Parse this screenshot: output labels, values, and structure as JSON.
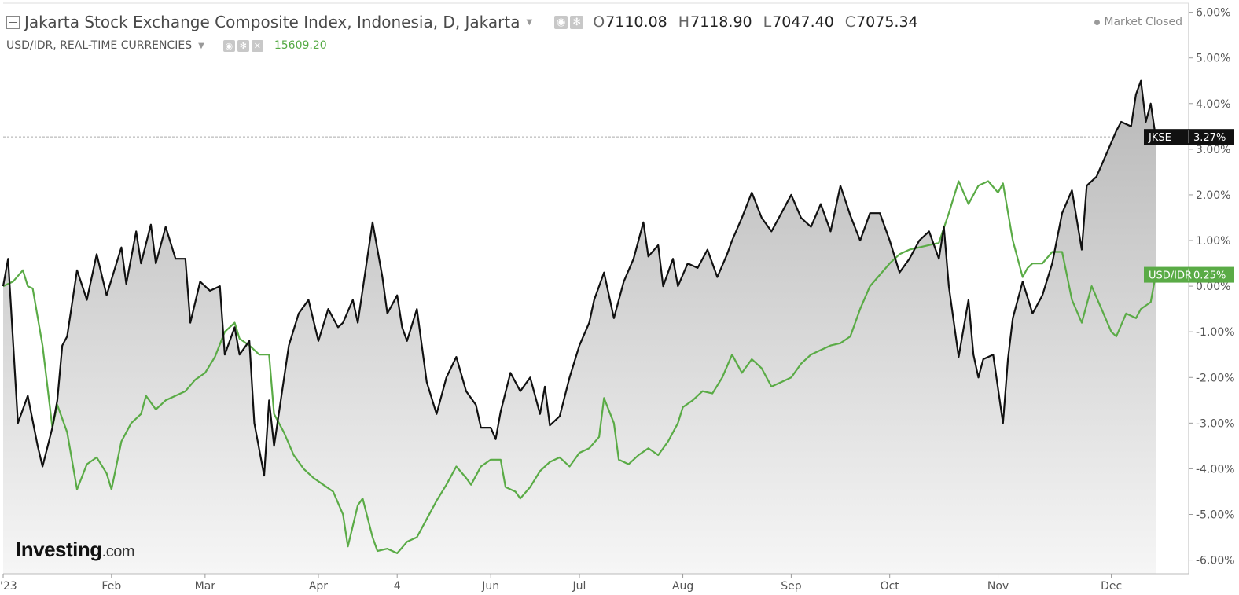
{
  "header": {
    "title": "Jakarta Stock Exchange Composite Index, Indonesia, D, Jakarta",
    "ohlc": [
      {
        "key": "O",
        "value": "7110.08"
      },
      {
        "key": "H",
        "value": "7118.90"
      },
      {
        "key": "L",
        "value": "7047.40"
      },
      {
        "key": "C",
        "value": "7075.34"
      }
    ],
    "status": "Market Closed"
  },
  "subheader": {
    "title": "USD/IDR, REAL-TIME CURRENCIES",
    "last_value": "15609.20"
  },
  "logo": {
    "main": "Investing",
    "suffix": ".com"
  },
  "colors": {
    "jkse": "#111111",
    "usdidr": "#5aab46",
    "area_top": "#b8b8b8",
    "area_bottom": "#f6f6f6",
    "grid": "#eeeeee"
  },
  "chart_data": {
    "type": "line",
    "ylim": [
      -6.3,
      6.2
    ],
    "y_scale": "percent change",
    "yticks": [
      "6.00%",
      "5.00%",
      "4.00%",
      "3.00%",
      "2.00%",
      "1.00%",
      "0.00%",
      "-1.00%",
      "-2.00%",
      "-3.00%",
      "-4.00%",
      "-5.00%",
      "-6.00%"
    ],
    "ytick_values": [
      6,
      5,
      4,
      3,
      2,
      1,
      0,
      -1,
      -2,
      -3,
      -4,
      -5,
      -6
    ],
    "xticks": [
      "2023",
      "Feb",
      "Mar",
      "Apr",
      "4",
      "Jun",
      "Jul",
      "Aug",
      "Sep",
      "Oct",
      "Nov",
      "Dec"
    ],
    "xtick_values": [
      0,
      22,
      41,
      64,
      80,
      99,
      117,
      138,
      160,
      180,
      202,
      225
    ],
    "xlim": [
      0,
      236
    ],
    "series": [
      {
        "name": "JKSE",
        "label": "3.27%",
        "last": 3.27,
        "fill": true,
        "points": [
          [
            0,
            0
          ],
          [
            1,
            0.6
          ],
          [
            3,
            -3.0
          ],
          [
            5,
            -2.4
          ],
          [
            7,
            -3.5
          ],
          [
            8,
            -3.95
          ],
          [
            10,
            -3.1
          ],
          [
            11,
            -2.5
          ],
          [
            12,
            -1.3
          ],
          [
            13,
            -1.1
          ],
          [
            15,
            0.35
          ],
          [
            17,
            -0.3
          ],
          [
            19,
            0.7
          ],
          [
            21,
            -0.2
          ],
          [
            24,
            0.85
          ],
          [
            25,
            0.05
          ],
          [
            27,
            1.2
          ],
          [
            28,
            0.5
          ],
          [
            30,
            1.35
          ],
          [
            31,
            0.5
          ],
          [
            33,
            1.3
          ],
          [
            35,
            0.6
          ],
          [
            37,
            0.6
          ],
          [
            38,
            -0.8
          ],
          [
            40,
            0.1
          ],
          [
            42,
            -0.1
          ],
          [
            44,
            0.0
          ],
          [
            45,
            -1.5
          ],
          [
            47,
            -0.9
          ],
          [
            48,
            -1.5
          ],
          [
            50,
            -1.2
          ],
          [
            51,
            -3.0
          ],
          [
            53,
            -4.15
          ],
          [
            54,
            -2.5
          ],
          [
            55,
            -3.5
          ],
          [
            58,
            -1.3
          ],
          [
            60,
            -0.6
          ],
          [
            62,
            -0.3
          ],
          [
            64,
            -1.2
          ],
          [
            66,
            -0.5
          ],
          [
            68,
            -0.9
          ],
          [
            69,
            -0.8
          ],
          [
            71,
            -0.3
          ],
          [
            72,
            -0.8
          ],
          [
            75,
            1.4
          ],
          [
            77,
            0.2
          ],
          [
            78,
            -0.6
          ],
          [
            80,
            -0.2
          ],
          [
            81,
            -0.9
          ],
          [
            82,
            -1.2
          ],
          [
            84,
            -0.5
          ],
          [
            86,
            -2.1
          ],
          [
            88,
            -2.8
          ],
          [
            90,
            -2.0
          ],
          [
            92,
            -1.55
          ],
          [
            94,
            -2.3
          ],
          [
            96,
            -2.6
          ],
          [
            97,
            -3.1
          ],
          [
            99,
            -3.1
          ],
          [
            100,
            -3.35
          ],
          [
            101,
            -2.75
          ],
          [
            103,
            -1.9
          ],
          [
            105,
            -2.3
          ],
          [
            107,
            -2.0
          ],
          [
            109,
            -2.8
          ],
          [
            110,
            -2.2
          ],
          [
            111,
            -3.05
          ],
          [
            113,
            -2.85
          ],
          [
            115,
            -2.0
          ],
          [
            117,
            -1.3
          ],
          [
            119,
            -0.8
          ],
          [
            120,
            -0.3
          ],
          [
            122,
            0.3
          ],
          [
            124,
            -0.7
          ],
          [
            126,
            0.1
          ],
          [
            128,
            0.6
          ],
          [
            130,
            1.4
          ],
          [
            131,
            0.65
          ],
          [
            133,
            0.9
          ],
          [
            134,
            0.0
          ],
          [
            136,
            0.6
          ],
          [
            137,
            0.0
          ],
          [
            139,
            0.5
          ],
          [
            141,
            0.4
          ],
          [
            143,
            0.8
          ],
          [
            145,
            0.2
          ],
          [
            147,
            0.7
          ],
          [
            148,
            1.0
          ],
          [
            150,
            1.5
          ],
          [
            152,
            2.05
          ],
          [
            154,
            1.5
          ],
          [
            156,
            1.2
          ],
          [
            158,
            1.6
          ],
          [
            160,
            2.0
          ],
          [
            162,
            1.5
          ],
          [
            164,
            1.3
          ],
          [
            166,
            1.8
          ],
          [
            168,
            1.2
          ],
          [
            170,
            2.2
          ],
          [
            172,
            1.55
          ],
          [
            174,
            1.0
          ],
          [
            176,
            1.6
          ],
          [
            178,
            1.6
          ],
          [
            180,
            1.0
          ],
          [
            182,
            0.3
          ],
          [
            184,
            0.6
          ],
          [
            186,
            1.0
          ],
          [
            188,
            1.2
          ],
          [
            190,
            0.6
          ],
          [
            191,
            1.3
          ],
          [
            192,
            0.0
          ],
          [
            194,
            -1.55
          ],
          [
            196,
            -0.3
          ],
          [
            197,
            -1.5
          ],
          [
            198,
            -2.0
          ],
          [
            199,
            -1.6
          ],
          [
            201,
            -1.5
          ],
          [
            203,
            -3.0
          ],
          [
            204,
            -1.6
          ],
          [
            205,
            -0.7
          ],
          [
            207,
            0.1
          ],
          [
            209,
            -0.6
          ],
          [
            211,
            -0.2
          ],
          [
            213,
            0.5
          ],
          [
            215,
            1.6
          ],
          [
            217,
            2.1
          ],
          [
            219,
            0.8
          ],
          [
            220,
            2.2
          ],
          [
            222,
            2.4
          ],
          [
            224,
            2.9
          ],
          [
            226,
            3.4
          ],
          [
            227,
            3.6
          ],
          [
            229,
            3.5
          ],
          [
            230,
            4.2
          ],
          [
            231,
            4.5
          ],
          [
            232,
            3.6
          ],
          [
            233,
            4.0
          ],
          [
            234,
            3.27
          ]
        ]
      },
      {
        "name": "USD/IDR",
        "label": "0.25%",
        "last": 0.25,
        "fill": false,
        "points": [
          [
            0,
            0
          ],
          [
            2,
            0.1
          ],
          [
            4,
            0.35
          ],
          [
            5,
            0.0
          ],
          [
            6,
            -0.05
          ],
          [
            8,
            -1.3
          ],
          [
            10,
            -3.1
          ],
          [
            11,
            -2.6
          ],
          [
            13,
            -3.2
          ],
          [
            15,
            -4.45
          ],
          [
            17,
            -3.9
          ],
          [
            19,
            -3.75
          ],
          [
            21,
            -4.1
          ],
          [
            22,
            -4.45
          ],
          [
            24,
            -3.4
          ],
          [
            26,
            -3.0
          ],
          [
            28,
            -2.8
          ],
          [
            29,
            -2.4
          ],
          [
            31,
            -2.7
          ],
          [
            33,
            -2.5
          ],
          [
            35,
            -2.4
          ],
          [
            37,
            -2.3
          ],
          [
            39,
            -2.05
          ],
          [
            41,
            -1.9
          ],
          [
            43,
            -1.55
          ],
          [
            45,
            -1.0
          ],
          [
            47,
            -0.8
          ],
          [
            48,
            -1.15
          ],
          [
            50,
            -1.3
          ],
          [
            52,
            -1.5
          ],
          [
            54,
            -1.5
          ],
          [
            55,
            -2.8
          ],
          [
            57,
            -3.2
          ],
          [
            59,
            -3.7
          ],
          [
            61,
            -4.0
          ],
          [
            63,
            -4.2
          ],
          [
            65,
            -4.35
          ],
          [
            67,
            -4.5
          ],
          [
            69,
            -5.0
          ],
          [
            70,
            -5.7
          ],
          [
            72,
            -4.8
          ],
          [
            73,
            -4.65
          ],
          [
            75,
            -5.5
          ],
          [
            76,
            -5.8
          ],
          [
            78,
            -5.75
          ],
          [
            80,
            -5.85
          ],
          [
            82,
            -5.6
          ],
          [
            84,
            -5.5
          ],
          [
            86,
            -5.1
          ],
          [
            88,
            -4.7
          ],
          [
            90,
            -4.35
          ],
          [
            92,
            -3.95
          ],
          [
            94,
            -4.2
          ],
          [
            95,
            -4.35
          ],
          [
            97,
            -3.95
          ],
          [
            99,
            -3.8
          ],
          [
            101,
            -3.8
          ],
          [
            102,
            -4.4
          ],
          [
            104,
            -4.5
          ],
          [
            105,
            -4.65
          ],
          [
            107,
            -4.4
          ],
          [
            109,
            -4.05
          ],
          [
            111,
            -3.85
          ],
          [
            113,
            -3.75
          ],
          [
            115,
            -3.95
          ],
          [
            117,
            -3.65
          ],
          [
            119,
            -3.55
          ],
          [
            121,
            -3.3
          ],
          [
            122,
            -2.45
          ],
          [
            124,
            -3.0
          ],
          [
            125,
            -3.8
          ],
          [
            127,
            -3.9
          ],
          [
            129,
            -3.7
          ],
          [
            131,
            -3.55
          ],
          [
            133,
            -3.7
          ],
          [
            135,
            -3.4
          ],
          [
            137,
            -3.0
          ],
          [
            138,
            -2.65
          ],
          [
            140,
            -2.5
          ],
          [
            142,
            -2.3
          ],
          [
            144,
            -2.35
          ],
          [
            146,
            -2.0
          ],
          [
            148,
            -1.5
          ],
          [
            150,
            -1.9
          ],
          [
            152,
            -1.6
          ],
          [
            154,
            -1.8
          ],
          [
            156,
            -2.2
          ],
          [
            158,
            -2.1
          ],
          [
            160,
            -2.0
          ],
          [
            162,
            -1.7
          ],
          [
            164,
            -1.5
          ],
          [
            166,
            -1.4
          ],
          [
            168,
            -1.3
          ],
          [
            170,
            -1.25
          ],
          [
            172,
            -1.1
          ],
          [
            174,
            -0.5
          ],
          [
            176,
            0.0
          ],
          [
            178,
            0.25
          ],
          [
            180,
            0.5
          ],
          [
            182,
            0.7
          ],
          [
            184,
            0.8
          ],
          [
            186,
            0.85
          ],
          [
            188,
            0.9
          ],
          [
            190,
            0.95
          ],
          [
            192,
            1.6
          ],
          [
            194,
            2.3
          ],
          [
            196,
            1.8
          ],
          [
            198,
            2.2
          ],
          [
            200,
            2.3
          ],
          [
            202,
            2.05
          ],
          [
            203,
            2.25
          ],
          [
            205,
            1.0
          ],
          [
            207,
            0.2
          ],
          [
            208,
            0.4
          ],
          [
            209,
            0.5
          ],
          [
            211,
            0.5
          ],
          [
            213,
            0.75
          ],
          [
            215,
            0.75
          ],
          [
            217,
            -0.3
          ],
          [
            219,
            -0.8
          ],
          [
            221,
            0.0
          ],
          [
            223,
            -0.5
          ],
          [
            225,
            -1.0
          ],
          [
            226,
            -1.1
          ],
          [
            228,
            -0.6
          ],
          [
            230,
            -0.7
          ],
          [
            231,
            -0.5
          ],
          [
            233,
            -0.35
          ],
          [
            234,
            0.25
          ]
        ]
      }
    ]
  }
}
